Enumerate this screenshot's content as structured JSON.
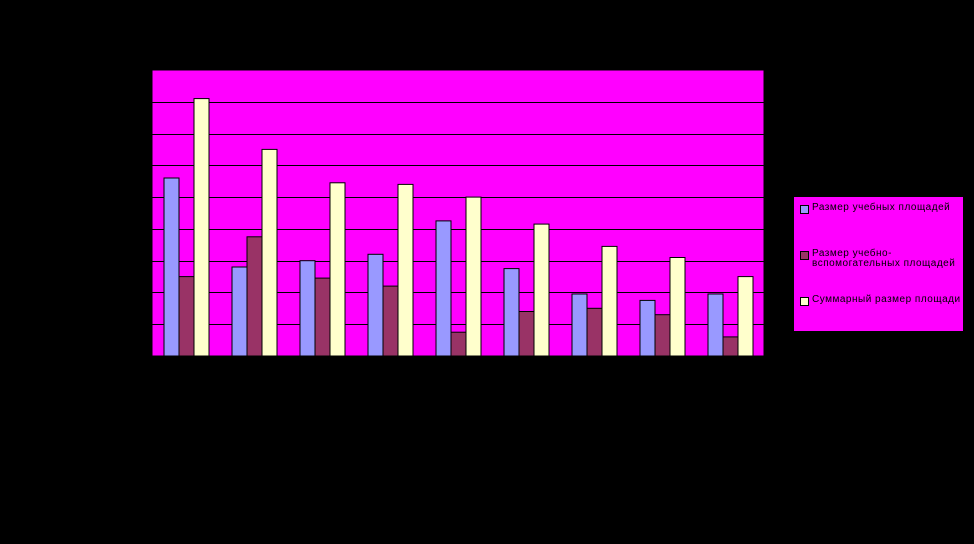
{
  "chart_data": {
    "type": "bar",
    "title": "",
    "xlabel": "",
    "ylabel": "",
    "ylim": [
      0,
      9
    ],
    "grid": true,
    "legend_position": "right",
    "categories": [
      "",
      "",
      "",
      "",
      "",
      "",
      "",
      "",
      ""
    ],
    "series": [
      {
        "name": "Размер учебных площадей",
        "color": "#9999FF",
        "values": [
          5.6,
          2.8,
          3.0,
          3.2,
          4.25,
          2.75,
          1.95,
          1.75,
          1.95
        ]
      },
      {
        "name": "Размер учебно-вспомогательных площадей",
        "color": "#993366",
        "values": [
          2.5,
          3.75,
          2.45,
          2.2,
          0.75,
          1.4,
          1.5,
          1.3,
          0.6
        ]
      },
      {
        "name": "Суммарный размер площади",
        "color": "#FFFFCC",
        "values": [
          8.1,
          6.5,
          5.45,
          5.4,
          5.0,
          4.15,
          3.45,
          3.1,
          2.5
        ]
      }
    ]
  },
  "style": {
    "plot_background": "#FF00FF",
    "grid_color": "#000000",
    "page_background": "#000000"
  }
}
